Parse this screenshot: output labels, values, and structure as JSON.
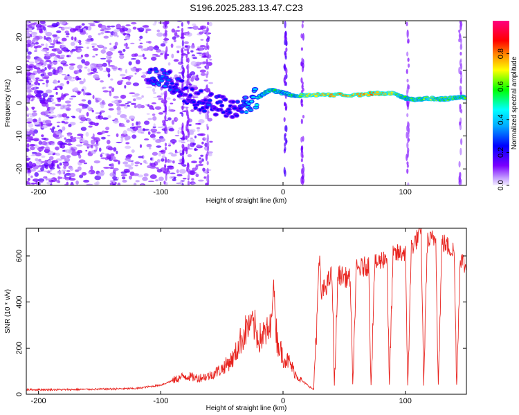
{
  "title": "S196.2025.283.13.47.C23",
  "chart_data": [
    {
      "type": "heatmap",
      "name": "spectrogram",
      "xlabel": "Height of straight line (km)",
      "ylabel": "Frequency (Hz)",
      "xlim": [
        -210,
        150
      ],
      "ylim": [
        -25,
        25
      ],
      "xticks": [
        -200,
        -100,
        0,
        100
      ],
      "xtick_labels": [
        "-200",
        "-100",
        "0",
        "100"
      ],
      "yticks": [
        -20,
        -10,
        0,
        10,
        20
      ],
      "ytick_labels": [
        "-20",
        "-10",
        "0",
        "10",
        "20"
      ],
      "colorbar": {
        "label": "Normalized spectral amplitude",
        "range": [
          0,
          1
        ],
        "ticks": [
          0,
          0.2,
          0.4,
          0.6,
          0.8
        ],
        "tick_labels": [
          "0.0",
          "0.2",
          "0.4",
          "0.6",
          "0.8"
        ],
        "colors": [
          "#e8e0ff",
          "#7a00ff",
          "#0000ff",
          "#00ffff",
          "#00ff00",
          "#ffff00",
          "#ff8000",
          "#ff0000",
          "#ff00ff"
        ]
      },
      "trace": {
        "x": [
          -110,
          -100,
          -90,
          -80,
          -70,
          -60,
          -50,
          -40,
          -30,
          -20,
          -10,
          0,
          10,
          20,
          40,
          60,
          80,
          90,
          100,
          110,
          120,
          130,
          140,
          150
        ],
        "freq": [
          9,
          8,
          6,
          3,
          1,
          0,
          -1,
          -2,
          0,
          2,
          4,
          3,
          2,
          2.5,
          2.5,
          2.5,
          3,
          2.8,
          1.5,
          1,
          1.5,
          1.2,
          1.5,
          1.8
        ],
        "amplitude": [
          0.25,
          0.3,
          0.28,
          0.2,
          0.22,
          0.25,
          0.22,
          0.2,
          0.35,
          0.45,
          0.55,
          0.5,
          0.55,
          0.72,
          0.78,
          0.75,
          0.8,
          0.7,
          0.55,
          0.6,
          0.65,
          0.6,
          0.62,
          0.6
        ]
      }
    },
    {
      "type": "line",
      "name": "snr",
      "xlabel": "Height of straight line (km)",
      "ylabel": "SNR (10 * v/v)",
      "xlim": [
        -210,
        150
      ],
      "ylim": [
        0,
        720
      ],
      "xticks": [
        -200,
        -100,
        0,
        100
      ],
      "xtick_labels": [
        "-200",
        "-100",
        "0",
        "100"
      ],
      "yticks": [
        0,
        200,
        400,
        600
      ],
      "ytick_labels": [
        "0",
        "200",
        "400",
        "600"
      ],
      "color": "#e8231e",
      "series": [
        {
          "name": "SNR",
          "x": [
            -210,
            -180,
            -150,
            -120,
            -100,
            -90,
            -80,
            -70,
            -60,
            -50,
            -40,
            -35,
            -30,
            -25,
            -20,
            -15,
            -10,
            -8,
            -5,
            0,
            5,
            10,
            15,
            20,
            25,
            30,
            31,
            40,
            42,
            45,
            55,
            57,
            60,
            70,
            72,
            75,
            85,
            87,
            90,
            100,
            102,
            105,
            113,
            115,
            118,
            125,
            127,
            130,
            140,
            142,
            145,
            150
          ],
          "y": [
            20,
            20,
            22,
            25,
            40,
            60,
            80,
            70,
            80,
            110,
            160,
            230,
            280,
            320,
            240,
            260,
            280,
            490,
            240,
            160,
            140,
            90,
            60,
            40,
            20,
            610,
            430,
            520,
            40,
            520,
            500,
            40,
            540,
            560,
            40,
            560,
            600,
            40,
            600,
            620,
            40,
            640,
            700,
            40,
            660,
            680,
            40,
            660,
            620,
            40,
            600,
            540
          ]
        }
      ]
    }
  ]
}
